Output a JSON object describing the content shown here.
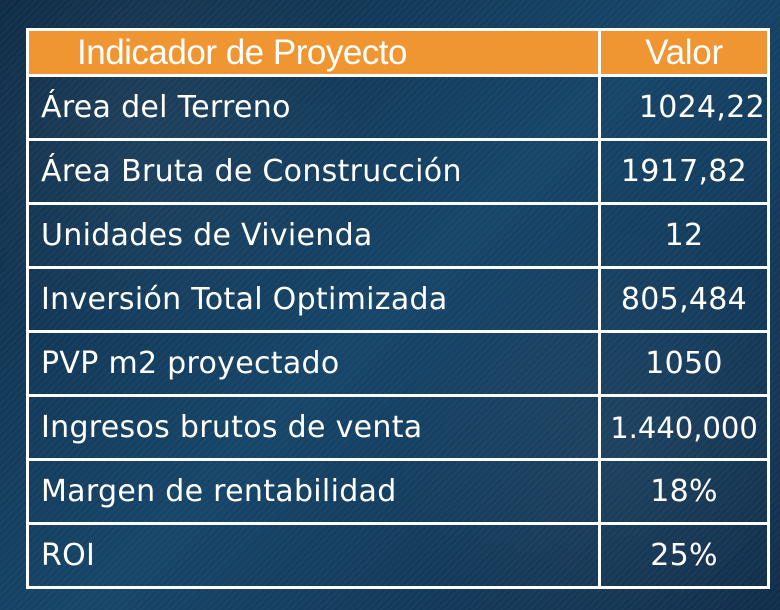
{
  "table": {
    "headers": {
      "indicator": "Indicador de Proyecto",
      "value": "Valor"
    },
    "rows": [
      {
        "indicator": "Área del Terreno",
        "value": "1024,22"
      },
      {
        "indicator": "Área Bruta de Construcción",
        "value": "1917,82"
      },
      {
        "indicator": "Unidades de Vivienda",
        "value": "12"
      },
      {
        "indicator": "Inversión Total Optimizada",
        "value": "805,484"
      },
      {
        "indicator": "PVP m2 proyectado",
        "value": "1050"
      },
      {
        "indicator": "Ingresos brutos de venta",
        "value": "1.440,000"
      },
      {
        "indicator": "Margen de rentabilidad",
        "value": "18%"
      },
      {
        "indicator": "ROI",
        "value": "25%"
      }
    ]
  },
  "colors": {
    "background": "#123b5d",
    "header": "#ef9531",
    "border": "#ffffff",
    "text": "#ffffff"
  }
}
